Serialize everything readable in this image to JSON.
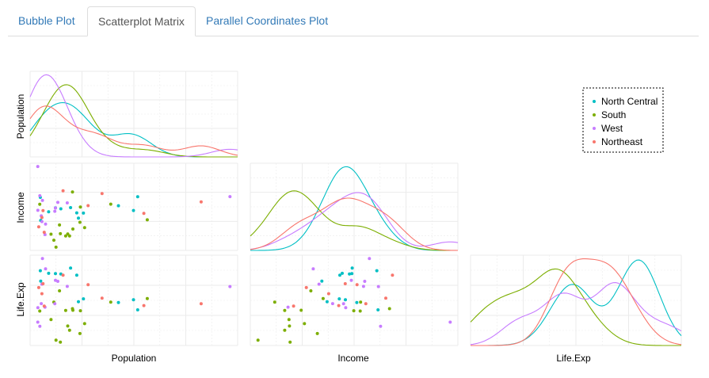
{
  "tabs": [
    {
      "label": "Bubble Plot",
      "active": false
    },
    {
      "label": "Scatterplot Matrix",
      "active": true
    },
    {
      "label": "Parallel Coordinates Plot",
      "active": false
    }
  ],
  "chart_data": {
    "type": "scatter",
    "title": "",
    "variables": [
      "Population",
      "Income",
      "Life.Exp"
    ],
    "grid": true,
    "legend_position": "top-right",
    "series": [
      {
        "name": "North Central",
        "color": "#00BFC4",
        "points": [
          {
            "Population": 11197,
            "Income": 5107,
            "Life.Exp": 70.14
          },
          {
            "Population": 5313,
            "Income": 4458,
            "Life.Exp": 70.88
          },
          {
            "Population": 2861,
            "Income": 4628,
            "Life.Exp": 72.56
          },
          {
            "Population": 2280,
            "Income": 4669,
            "Life.Exp": 72.58
          },
          {
            "Population": 9111,
            "Income": 4751,
            "Life.Exp": 70.63
          },
          {
            "Population": 3921,
            "Income": 4675,
            "Life.Exp": 72.96
          },
          {
            "Population": 4767,
            "Income": 4254,
            "Life.Exp": 70.69
          },
          {
            "Population": 1544,
            "Income": 4508,
            "Life.Exp": 72.6
          },
          {
            "Population": 637,
            "Income": 5087,
            "Life.Exp": 72.78
          },
          {
            "Population": 10735,
            "Income": 4561,
            "Life.Exp": 70.82
          },
          {
            "Population": 681,
            "Income": 4167,
            "Life.Exp": 72.08
          },
          {
            "Population": 4589,
            "Income": 4468,
            "Life.Exp": 72.48
          }
        ]
      },
      {
        "name": "South",
        "color": "#7CAE00",
        "points": [
          {
            "Population": 3615,
            "Income": 3624,
            "Life.Exp": 69.05
          },
          {
            "Population": 2110,
            "Income": 3378,
            "Life.Exp": 70.66
          },
          {
            "Population": 579,
            "Income": 4809,
            "Life.Exp": 70.06
          },
          {
            "Population": 8277,
            "Income": 4815,
            "Life.Exp": 70.66
          },
          {
            "Population": 4931,
            "Income": 4091,
            "Life.Exp": 68.54
          },
          {
            "Population": 3387,
            "Income": 3545,
            "Life.Exp": 70.1
          },
          {
            "Population": 3806,
            "Income": 3545,
            "Life.Exp": 68.76
          },
          {
            "Population": 4122,
            "Income": 5299,
            "Life.Exp": 70.22
          },
          {
            "Population": 2341,
            "Income": 3098,
            "Life.Exp": 68.09
          },
          {
            "Population": 5441,
            "Income": 3875,
            "Life.Exp": 69.21
          },
          {
            "Population": 2715,
            "Income": 3983,
            "Life.Exp": 71.42
          },
          {
            "Population": 2816,
            "Income": 3635,
            "Life.Exp": 67.96
          },
          {
            "Population": 4173,
            "Income": 3821,
            "Life.Exp": 70.11
          },
          {
            "Population": 12237,
            "Income": 4188,
            "Life.Exp": 70.9
          },
          {
            "Population": 4981,
            "Income": 4701,
            "Life.Exp": 70.08
          },
          {
            "Population": 1799,
            "Income": 3617,
            "Life.Exp": 69.48
          }
        ]
      },
      {
        "name": "West",
        "color": "#C77CFF",
        "points": [
          {
            "Population": 365,
            "Income": 6315,
            "Life.Exp": 69.31
          },
          {
            "Population": 2212,
            "Income": 4530,
            "Life.Exp": 70.55
          },
          {
            "Population": 21198,
            "Income": 5114,
            "Life.Exp": 71.71
          },
          {
            "Population": 2541,
            "Income": 4884,
            "Life.Exp": 72.06
          },
          {
            "Population": 868,
            "Income": 4963,
            "Life.Exp": 73.6
          },
          {
            "Population": 813,
            "Income": 4119,
            "Life.Exp": 71.87
          },
          {
            "Population": 746,
            "Income": 4347,
            "Life.Exp": 70.56
          },
          {
            "Population": 590,
            "Income": 5149,
            "Life.Exp": 69.03
          },
          {
            "Population": 1144,
            "Income": 3601,
            "Life.Exp": 70.32
          },
          {
            "Population": 2284,
            "Income": 4660,
            "Life.Exp": 72.13
          },
          {
            "Population": 1203,
            "Income": 4022,
            "Life.Exp": 72.9
          },
          {
            "Population": 3559,
            "Income": 4864,
            "Life.Exp": 71.72
          },
          {
            "Population": 376,
            "Income": 4566,
            "Life.Exp": 70.29
          }
        ]
      },
      {
        "name": "Northeast",
        "color": "#F8766D",
        "points": [
          {
            "Population": 3100,
            "Income": 5348,
            "Life.Exp": 72.48
          },
          {
            "Population": 1058,
            "Income": 3694,
            "Life.Exp": 70.39
          },
          {
            "Population": 5814,
            "Income": 4755,
            "Life.Exp": 71.83
          },
          {
            "Population": 812,
            "Income": 4281,
            "Life.Exp": 71.23
          },
          {
            "Population": 7333,
            "Income": 5237,
            "Life.Exp": 70.93
          },
          {
            "Population": 18076,
            "Income": 4903,
            "Life.Exp": 70.55
          },
          {
            "Population": 11860,
            "Income": 4449,
            "Life.Exp": 70.43
          },
          {
            "Population": 931,
            "Income": 4558,
            "Life.Exp": 71.9
          },
          {
            "Population": 472,
            "Income": 3907,
            "Life.Exp": 71.64
          }
        ]
      }
    ]
  }
}
